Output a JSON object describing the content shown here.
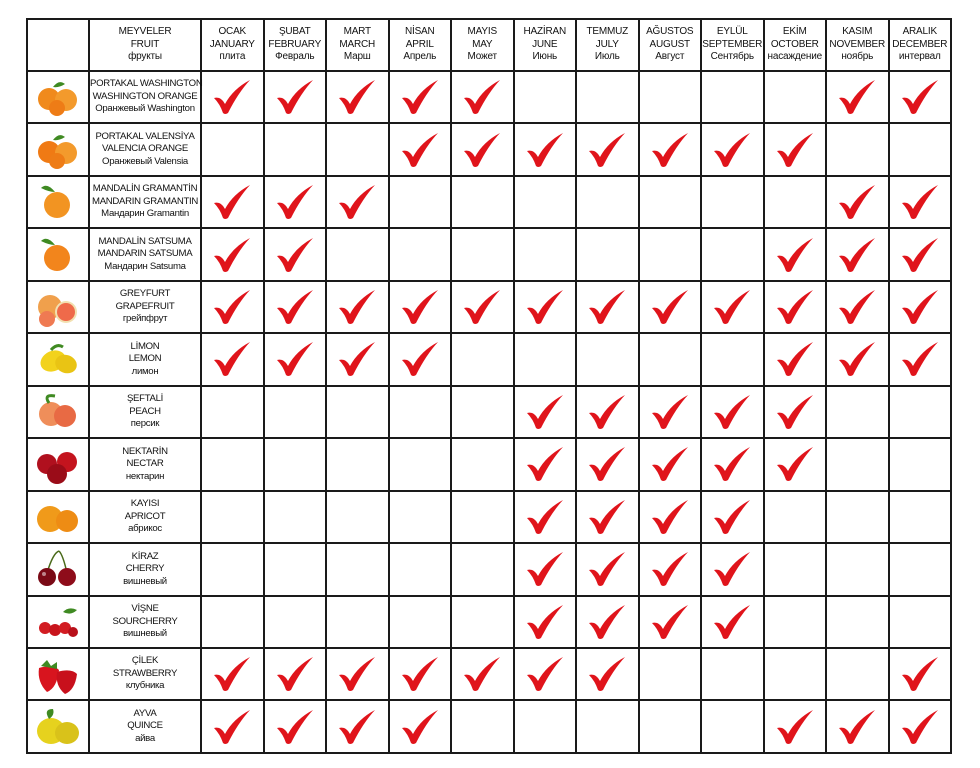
{
  "header": {
    "fruit_column": [
      "MEYVELER",
      "FRUIT",
      "фрукты"
    ],
    "months": [
      [
        "OCAK",
        "JANUARY",
        "плита"
      ],
      [
        "ŞUBAT",
        "FEBRUARY",
        "Февраль"
      ],
      [
        "MART",
        "MARCH",
        "Марш"
      ],
      [
        "NİSAN",
        "APRIL",
        "Апрель"
      ],
      [
        "MAYIS",
        "MAY",
        "Может"
      ],
      [
        "HAZİRAN",
        "JUNE",
        "Июнь"
      ],
      [
        "TEMMUZ",
        "JULY",
        "Июль"
      ],
      [
        "AĞUSTOS",
        "AUGUST",
        "Август"
      ],
      [
        "EYLÜL",
        "SEPTEMBER",
        "Сентябрь"
      ],
      [
        "EKİM",
        "OCTOBER",
        "насаждение"
      ],
      [
        "KASIM",
        "NOVEMBER",
        "ноябрь"
      ],
      [
        "ARALIK",
        "DECEMBER",
        "интервал"
      ]
    ]
  },
  "check_color": "#e0141b",
  "fruits": [
    {
      "names": [
        "PORTAKAL WASHINGTON",
        "WASHINGTON ORANGE",
        "Оранжевый Washington"
      ],
      "icon": "orange-fruit-icon",
      "color": "#f08a1c",
      "months": [
        1,
        1,
        1,
        1,
        1,
        0,
        0,
        0,
        0,
        0,
        1,
        1
      ]
    },
    {
      "names": [
        "PORTAKAL VALENSİYA",
        "VALENCIA ORANGE",
        "Оранжевый Valensia"
      ],
      "icon": "orange-fruit-icon",
      "color": "#f07a14",
      "months": [
        0,
        0,
        0,
        1,
        1,
        1,
        1,
        1,
        1,
        1,
        0,
        0
      ]
    },
    {
      "names": [
        "MANDALİN GRAMANTİN",
        "MANDARIN GRAMANTIN",
        "Мандарин Gramantin"
      ],
      "icon": "mandarin-icon",
      "color": "#f29422",
      "months": [
        1,
        1,
        1,
        0,
        0,
        0,
        0,
        0,
        0,
        0,
        1,
        1
      ]
    },
    {
      "names": [
        "MANDALİN SATSUMA",
        "MANDARIN SATSUMA",
        "Мандарин Satsuma"
      ],
      "icon": "mandarin-icon",
      "color": "#f2851c",
      "months": [
        1,
        1,
        0,
        0,
        0,
        0,
        0,
        0,
        0,
        1,
        1,
        1
      ]
    },
    {
      "names": [
        "GREYFURT",
        "GRAPEFRUIT",
        "грейпфрут"
      ],
      "icon": "grapefruit-icon",
      "color": "#f0a04c",
      "months": [
        1,
        1,
        1,
        1,
        1,
        1,
        1,
        1,
        1,
        1,
        1,
        1
      ]
    },
    {
      "names": [
        "LİMON",
        "LEMON",
        "лимон"
      ],
      "icon": "lemon-icon",
      "color": "#f2d21c",
      "months": [
        1,
        1,
        1,
        1,
        0,
        0,
        0,
        0,
        0,
        1,
        1,
        1
      ]
    },
    {
      "names": [
        "ŞEFTALİ",
        "PEACH",
        "персик"
      ],
      "icon": "peach-icon",
      "color": "#ef8e5a",
      "months": [
        0,
        0,
        0,
        0,
        0,
        1,
        1,
        1,
        1,
        1,
        0,
        0
      ]
    },
    {
      "names": [
        "NEKTARİN",
        "NECTAR",
        "нектарин"
      ],
      "icon": "nectarine-icon",
      "color": "#b0101e",
      "months": [
        0,
        0,
        0,
        0,
        0,
        1,
        1,
        1,
        1,
        1,
        0,
        0
      ]
    },
    {
      "names": [
        "KAYISI",
        "APRICOT",
        "абрикос"
      ],
      "icon": "apricot-icon",
      "color": "#f09a1a",
      "months": [
        0,
        0,
        0,
        0,
        0,
        1,
        1,
        1,
        1,
        0,
        0,
        0
      ]
    },
    {
      "names": [
        "KİRAZ",
        "CHERRY",
        "вишневый"
      ],
      "icon": "cherry-icon",
      "color": "#7a0a16",
      "months": [
        0,
        0,
        0,
        0,
        0,
        1,
        1,
        1,
        1,
        0,
        0,
        0
      ]
    },
    {
      "names": [
        "VİŞNE",
        "SOURCHERRY",
        "вишневый"
      ],
      "icon": "sourcherry-icon",
      "color": "#d21c22",
      "months": [
        0,
        0,
        0,
        0,
        0,
        1,
        1,
        1,
        1,
        0,
        0,
        0
      ]
    },
    {
      "names": [
        "ÇİLEK",
        "STRAWBERRY",
        "клубника"
      ],
      "icon": "strawberry-icon",
      "color": "#d8141e",
      "months": [
        1,
        1,
        1,
        1,
        1,
        1,
        1,
        0,
        0,
        0,
        0,
        1
      ]
    },
    {
      "names": [
        "AYVA",
        "QUINCE",
        "айва"
      ],
      "icon": "quince-icon",
      "color": "#e6d21e",
      "months": [
        1,
        1,
        1,
        1,
        0,
        0,
        0,
        0,
        0,
        1,
        1,
        1
      ]
    }
  ]
}
